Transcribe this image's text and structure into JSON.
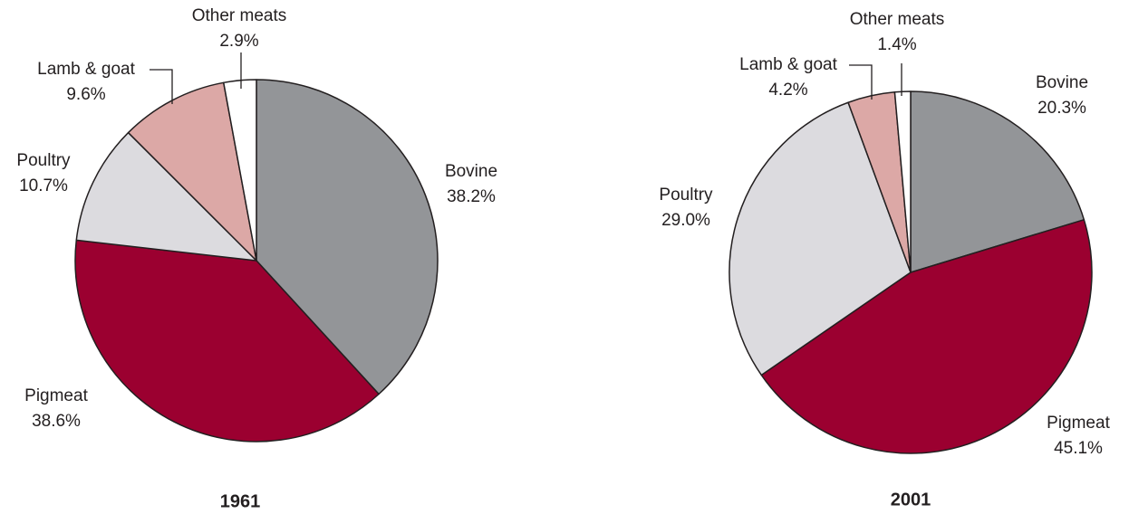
{
  "chart_data": [
    {
      "type": "pie",
      "title": "1961",
      "categories": [
        "Bovine",
        "Pigmeat",
        "Poultry",
        "Lamb & goat",
        "Other meats"
      ],
      "values": [
        38.2,
        38.6,
        10.7,
        9.6,
        2.9
      ],
      "value_labels": [
        "38.2%",
        "38.6%",
        "10.7%",
        "9.6%",
        "2.9%"
      ],
      "colors": [
        "#939598",
        "#9b0030",
        "#dcdbdf",
        "#dca8a6",
        "#ffffff"
      ]
    },
    {
      "type": "pie",
      "title": "2001",
      "categories": [
        "Bovine",
        "Pigmeat",
        "Poultry",
        "Lamb & goat",
        "Other meats"
      ],
      "values": [
        20.3,
        45.1,
        29.0,
        4.2,
        1.4
      ],
      "value_labels": [
        "20.3%",
        "45.1%",
        "29.0%",
        "4.2%",
        "1.4%"
      ],
      "colors": [
        "#939598",
        "#9b0030",
        "#dcdbdf",
        "#dca8a6",
        "#ffffff"
      ]
    }
  ]
}
